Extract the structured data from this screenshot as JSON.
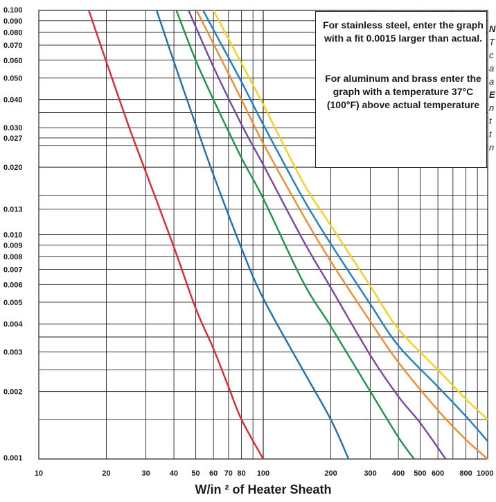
{
  "chart_data": {
    "type": "line",
    "xlabel": "W/in ² of Heater Sheath",
    "xscale": "log",
    "yscale": "log",
    "xlim": [
      10,
      1000
    ],
    "ylim": [
      0.001,
      0.1
    ],
    "grid": true,
    "x_ticks": [
      "10",
      "20",
      "30",
      "40",
      "50",
      "60",
      "70",
      "80",
      "100",
      "200",
      "300",
      "400",
      "500",
      "600",
      "800",
      "1000"
    ],
    "y_ticks": [
      "0.100",
      "0.090",
      "0.080",
      "0.070",
      "0.060",
      "0.050",
      "0.040",
      "0.030",
      "0.027",
      "0.020",
      "0.013",
      "0.010",
      "0.009",
      "0.008",
      "0.007",
      "0.006",
      "0.005",
      "0.004",
      "0.003",
      "0.002",
      "0.001"
    ],
    "series": [
      {
        "color": "#e3262f",
        "points": [
          [
            16.7,
            0.1
          ],
          [
            20,
            0.059
          ],
          [
            25,
            0.031
          ],
          [
            30,
            0.019
          ],
          [
            40,
            0.0088
          ],
          [
            50,
            0.0047
          ],
          [
            60,
            0.0031
          ],
          [
            70,
            0.0021
          ],
          [
            80,
            0.0015
          ],
          [
            100,
            0.001
          ]
        ]
      },
      {
        "color": "#1d6fb5",
        "points": [
          [
            33.5,
            0.1
          ],
          [
            40,
            0.059
          ],
          [
            50,
            0.031
          ],
          [
            60,
            0.0185
          ],
          [
            80,
            0.0087
          ],
          [
            100,
            0.0052
          ],
          [
            150,
            0.0025
          ],
          [
            200,
            0.0015
          ],
          [
            240,
            0.001
          ]
        ]
      },
      {
        "color": "#1a9449",
        "points": [
          [
            41,
            0.1
          ],
          [
            50,
            0.06
          ],
          [
            60,
            0.04
          ],
          [
            80,
            0.022
          ],
          [
            100,
            0.0145
          ],
          [
            150,
            0.0062
          ],
          [
            200,
            0.0039
          ],
          [
            300,
            0.002
          ],
          [
            400,
            0.00125
          ],
          [
            470,
            0.001
          ]
        ]
      },
      {
        "color": "#7b45a6",
        "points": [
          [
            46.5,
            0.1
          ],
          [
            60,
            0.056
          ],
          [
            80,
            0.031
          ],
          [
            100,
            0.0205
          ],
          [
            150,
            0.0095
          ],
          [
            200,
            0.0058
          ],
          [
            300,
            0.0029
          ],
          [
            400,
            0.0019
          ],
          [
            500,
            0.00145
          ],
          [
            650,
            0.001
          ]
        ]
      },
      {
        "color": "#f7892a",
        "points": [
          [
            50.5,
            0.1
          ],
          [
            60,
            0.071
          ],
          [
            80,
            0.04
          ],
          [
            100,
            0.0255
          ],
          [
            150,
            0.0123
          ],
          [
            200,
            0.0076
          ],
          [
            300,
            0.0041
          ],
          [
            400,
            0.0027
          ],
          [
            600,
            0.00165
          ],
          [
            800,
            0.00122
          ],
          [
            1000,
            0.001
          ]
        ]
      },
      {
        "color": "#1d7fc4",
        "points": [
          [
            54,
            0.1
          ],
          [
            60,
            0.082
          ],
          [
            80,
            0.048
          ],
          [
            100,
            0.031
          ],
          [
            150,
            0.0146
          ],
          [
            200,
            0.0091
          ],
          [
            300,
            0.0049
          ],
          [
            400,
            0.0032
          ],
          [
            600,
            0.0021
          ],
          [
            800,
            0.00155
          ],
          [
            1000,
            0.0012
          ]
        ]
      },
      {
        "color": "#f3d31a",
        "points": [
          [
            60,
            0.1
          ],
          [
            80,
            0.058
          ],
          [
            100,
            0.038
          ],
          [
            150,
            0.0172
          ],
          [
            200,
            0.011
          ],
          [
            300,
            0.0059
          ],
          [
            400,
            0.0038
          ],
          [
            600,
            0.0025
          ],
          [
            800,
            0.00185
          ],
          [
            1000,
            0.0015
          ]
        ]
      }
    ]
  },
  "notes": {
    "stainless": "For stainless steel, enter the graph with a fit 0.0015 larger than actual.",
    "aluminum": "For aluminum and brass enter the graph with a temperature 37°C (100°F) above actual temperature"
  },
  "side_text": [
    "N",
    "T",
    "c",
    "a",
    "a",
    "E",
    "n",
    "t",
    "t",
    "n"
  ]
}
